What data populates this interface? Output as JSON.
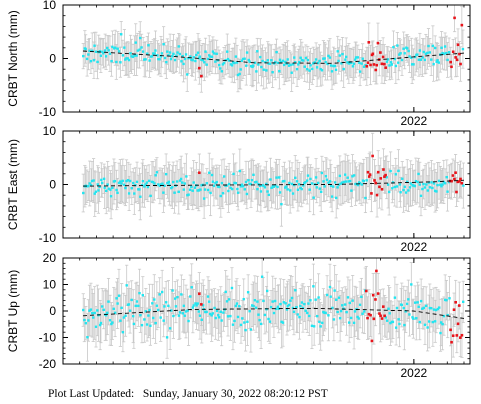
{
  "footer": {
    "label": "Plot Last Updated:",
    "timestamp": "Sunday, January 30, 2022 08:20:12 PST"
  },
  "colors": {
    "regular": "#22e5f0",
    "highlight": "#e8141b",
    "errorbar": "#c8c8c8",
    "trend": "#000000"
  },
  "chart_data": [
    {
      "type": "scatter",
      "ylabel": "CRBT North (mm)",
      "ylim": [
        -10,
        10
      ],
      "yticks": [
        -10,
        0,
        10
      ],
      "xlim": [
        2020.25,
        2022.28
      ],
      "xticks": [
        {
          "value": 2022.0,
          "label": "2022"
        }
      ],
      "trend": [
        [
          2020.35,
          1.4
        ],
        [
          2020.8,
          0.4
        ],
        [
          2021.2,
          -0.8
        ],
        [
          2021.6,
          -0.9
        ],
        [
          2022.1,
          0.6
        ],
        [
          2022.25,
          1.0
        ]
      ],
      "noise_sd": 1.0,
      "errorbar_half": 3.0,
      "highlight_ranges": [
        [
          2021.76,
          2021.86
        ],
        [
          2022.18,
          2022.24
        ]
      ],
      "extra_highlight": [
        [
          2020.93,
          -1.8
        ],
        [
          2020.94,
          -3.3
        ]
      ],
      "seed": 11
    },
    {
      "type": "scatter",
      "ylabel": "CRBT East (mm)",
      "ylim": [
        -10,
        10
      ],
      "yticks": [
        -10,
        0,
        10
      ],
      "xlim": [
        2020.25,
        2022.28
      ],
      "xticks": [
        {
          "value": 2022.0,
          "label": "2022"
        }
      ],
      "trend": [
        [
          2020.35,
          -0.3
        ],
        [
          2021.0,
          -0.1
        ],
        [
          2021.6,
          0.0
        ],
        [
          2022.1,
          0.5
        ],
        [
          2022.25,
          0.8
        ]
      ],
      "noise_sd": 1.0,
      "errorbar_half": 3.5,
      "highlight_ranges": [
        [
          2021.77,
          2021.86
        ],
        [
          2022.18,
          2022.24
        ]
      ],
      "extra_highlight": [
        [
          2020.93,
          2.2
        ]
      ],
      "seed": 23
    },
    {
      "type": "scatter",
      "ylabel": "CRBT Up (mm)",
      "ylim": [
        -20,
        20
      ],
      "yticks": [
        -20,
        -10,
        0,
        10,
        20
      ],
      "xlim": [
        2020.25,
        2022.28
      ],
      "xticks": [
        {
          "value": 2022.0,
          "label": "2022"
        }
      ],
      "trend": [
        [
          2020.35,
          -1.8
        ],
        [
          2020.9,
          0.6
        ],
        [
          2021.5,
          1.0
        ],
        [
          2022.0,
          0.0
        ],
        [
          2022.25,
          -2.8
        ]
      ],
      "noise_sd": 4.0,
      "errorbar_half": 8.0,
      "highlight_ranges": [
        [
          2021.76,
          2021.86
        ],
        [
          2022.18,
          2022.24
        ]
      ],
      "extra_highlight": [
        [
          2020.93,
          6.5
        ],
        [
          2020.94,
          2.5
        ]
      ],
      "seed": 37
    }
  ]
}
